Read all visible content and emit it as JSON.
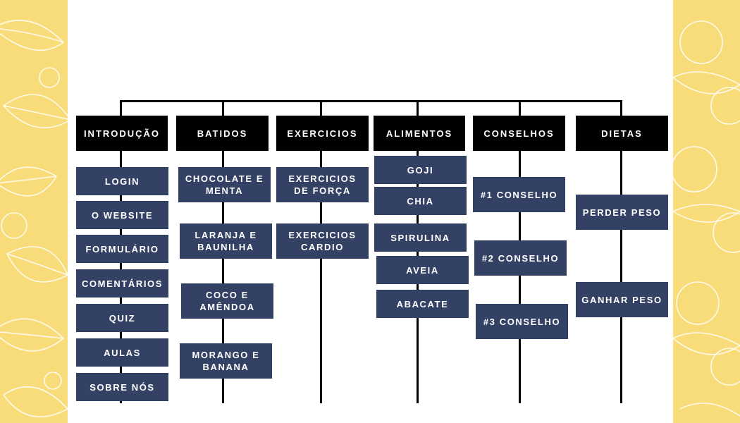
{
  "colors": {
    "side_panel": "#f9dc7a",
    "header_bg": "#000000",
    "node_bg": "#334264",
    "text": "#ffffff"
  },
  "columns": [
    {
      "title": "INTRODUÇÃO",
      "items": [
        "LOGIN",
        "O WEBSITE",
        "FORMULÁRIO",
        "COMENTÁRIOS",
        "QUIZ",
        "AULAS",
        "SOBRE NÓS"
      ]
    },
    {
      "title": "BATIDOS",
      "items": [
        "CHOCOLATE E\nMENTA",
        "LARANJA E\nBAUNILHA",
        "COCO E\nAMÊNDOA",
        "MORANGO E\nBANANA"
      ]
    },
    {
      "title": "EXERCICIOS",
      "items": [
        "EXERCICIOS\nDE FORÇA",
        "EXERCICIOS\nCARDIO"
      ]
    },
    {
      "title": "ALIMENTOS",
      "items": [
        "GOJI",
        "CHIA",
        "SPIRULINA",
        "AVEIA",
        "ABACATE"
      ]
    },
    {
      "title": "CONSELHOS",
      "items": [
        "#1 CONSELHO",
        "#2 CONSELHO",
        "#3 CONSELHO"
      ]
    },
    {
      "title": "DIETAS",
      "items": [
        "PERDER PESO",
        "GANHAR PESO"
      ]
    }
  ]
}
